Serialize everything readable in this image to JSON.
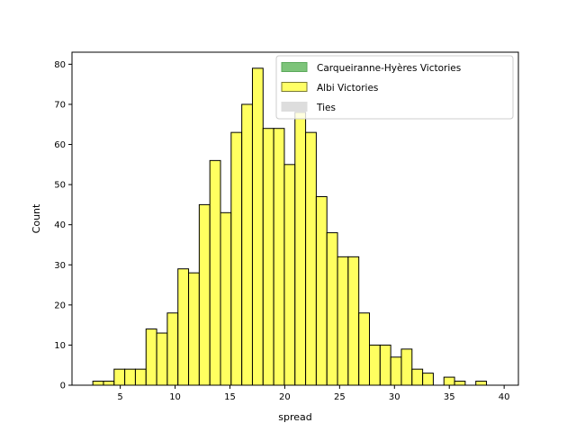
{
  "chart_data": {
    "type": "bar",
    "xlabel": "spread",
    "ylabel": "Count",
    "xlim": [
      0.6,
      41.3
    ],
    "ylim": [
      0,
      83
    ],
    "x_ticks": [
      5,
      10,
      15,
      20,
      25,
      30,
      35,
      40
    ],
    "y_ticks": [
      0,
      10,
      20,
      30,
      40,
      50,
      60,
      70,
      80
    ],
    "bin_width": 0.97,
    "series": [
      {
        "name": "Carqueiranne-Hyères Victories",
        "color": "#7dc47a",
        "values": []
      },
      {
        "name": "Albi Victories",
        "color": "#ffff44",
        "bins": [
          {
            "x": 2.5,
            "count": 1
          },
          {
            "x": 3.47,
            "count": 1
          },
          {
            "x": 4.44,
            "count": 4
          },
          {
            "x": 5.41,
            "count": 4
          },
          {
            "x": 6.38,
            "count": 4
          },
          {
            "x": 7.35,
            "count": 14
          },
          {
            "x": 8.32,
            "count": 13
          },
          {
            "x": 9.29,
            "count": 18
          },
          {
            "x": 10.26,
            "count": 29
          },
          {
            "x": 11.23,
            "count": 28
          },
          {
            "x": 12.2,
            "count": 45
          },
          {
            "x": 13.17,
            "count": 56
          },
          {
            "x": 14.14,
            "count": 43
          },
          {
            "x": 15.11,
            "count": 63
          },
          {
            "x": 16.08,
            "count": 70
          },
          {
            "x": 17.05,
            "count": 79
          },
          {
            "x": 18.02,
            "count": 64
          },
          {
            "x": 18.99,
            "count": 64
          },
          {
            "x": 19.96,
            "count": 55
          },
          {
            "x": 20.93,
            "count": 68
          },
          {
            "x": 21.9,
            "count": 63
          },
          {
            "x": 22.87,
            "count": 47
          },
          {
            "x": 23.84,
            "count": 38
          },
          {
            "x": 24.81,
            "count": 32
          },
          {
            "x": 25.78,
            "count": 32
          },
          {
            "x": 26.75,
            "count": 18
          },
          {
            "x": 27.72,
            "count": 10
          },
          {
            "x": 28.69,
            "count": 10
          },
          {
            "x": 29.66,
            "count": 7
          },
          {
            "x": 30.63,
            "count": 9
          },
          {
            "x": 31.6,
            "count": 4
          },
          {
            "x": 32.57,
            "count": 3
          },
          {
            "x": 33.54,
            "count": 0
          },
          {
            "x": 34.51,
            "count": 2
          },
          {
            "x": 35.48,
            "count": 1
          },
          {
            "x": 36.45,
            "count": 0
          },
          {
            "x": 37.42,
            "count": 1
          }
        ]
      },
      {
        "name": "Ties",
        "color": "#d9d9d9",
        "values": []
      }
    ],
    "legend": {
      "position": "top-right",
      "entries": [
        {
          "label": "Carqueiranne-Hyères Victories",
          "color": "#7dc47a",
          "edge": "#5aa85a"
        },
        {
          "label": "Albi Victories",
          "color": "#ffff66",
          "edge": "#7a7a30"
        },
        {
          "label": "Ties",
          "color": "#dddddd",
          "edge": "#dddddd"
        }
      ]
    },
    "grid": false
  }
}
